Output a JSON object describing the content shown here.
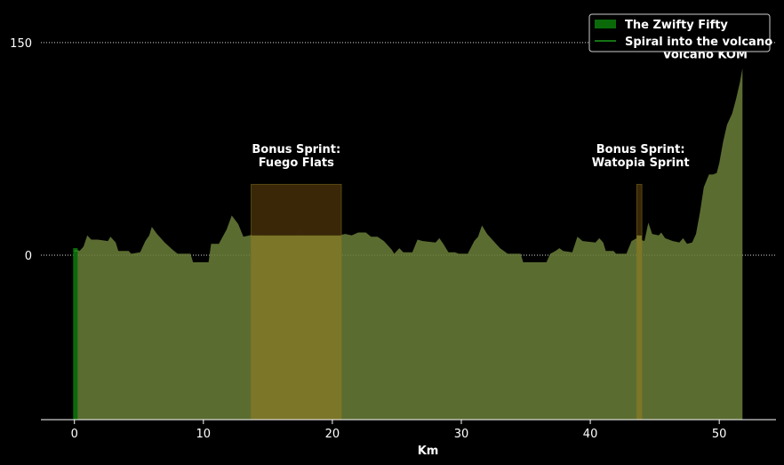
{
  "chart_data": {
    "type": "area",
    "title": "",
    "xlabel": "Km",
    "ylabel": "",
    "xlim": [
      -2.6,
      54.4
    ],
    "ylim": [
      -116,
      175
    ],
    "xticks": [
      0,
      10,
      20,
      30,
      40,
      50
    ],
    "yticks": [
      0,
      150
    ],
    "grid": "dotted horizontal lines at y ticks",
    "legend_position": "top-right",
    "series": [
      {
        "name": "The Zwifty Fifty",
        "kind": "area",
        "color": "#6b7f3a",
        "points": [
          [
            0,
            5
          ],
          [
            0.4,
            3
          ],
          [
            0.7,
            6
          ],
          [
            1.0,
            14
          ],
          [
            1.3,
            11
          ],
          [
            1.8,
            11
          ],
          [
            2.6,
            10
          ],
          [
            2.8,
            13
          ],
          [
            3.2,
            9
          ],
          [
            3.4,
            3
          ],
          [
            4.2,
            3
          ],
          [
            4.4,
            1
          ],
          [
            5.1,
            2
          ],
          [
            5.5,
            10
          ],
          [
            5.8,
            14
          ],
          [
            6.0,
            20
          ],
          [
            6.4,
            15
          ],
          [
            7.0,
            9
          ],
          [
            7.6,
            4
          ],
          [
            8.0,
            1
          ],
          [
            9.0,
            1
          ],
          [
            9.2,
            -5
          ],
          [
            10.4,
            -5
          ],
          [
            10.6,
            8
          ],
          [
            11.2,
            8
          ],
          [
            11.8,
            18
          ],
          [
            12.2,
            28
          ],
          [
            12.7,
            22
          ],
          [
            13.1,
            13
          ],
          [
            13.6,
            14
          ],
          [
            14.0,
            16
          ],
          [
            14.3,
            14
          ],
          [
            15.5,
            14
          ],
          [
            17.0,
            14
          ],
          [
            17.5,
            18
          ],
          [
            17.9,
            14
          ],
          [
            19.0,
            14
          ],
          [
            20.5,
            14
          ],
          [
            21.0,
            15
          ],
          [
            21.5,
            14
          ],
          [
            22.0,
            16
          ],
          [
            22.6,
            16
          ],
          [
            23.0,
            13
          ],
          [
            23.5,
            13
          ],
          [
            24.0,
            10
          ],
          [
            24.6,
            4
          ],
          [
            24.8,
            1
          ],
          [
            25.2,
            5
          ],
          [
            25.5,
            2
          ],
          [
            26.2,
            2
          ],
          [
            26.6,
            11
          ],
          [
            27.0,
            10
          ],
          [
            28.0,
            9
          ],
          [
            28.3,
            12
          ],
          [
            28.6,
            8
          ],
          [
            29.0,
            2
          ],
          [
            29.5,
            2
          ],
          [
            29.8,
            1
          ],
          [
            30.5,
            1
          ],
          [
            31.0,
            10
          ],
          [
            31.3,
            13
          ],
          [
            31.6,
            21
          ],
          [
            32.0,
            15
          ],
          [
            33.0,
            5
          ],
          [
            33.6,
            1
          ],
          [
            34.6,
            1
          ],
          [
            34.8,
            -5
          ],
          [
            36.6,
            -5
          ],
          [
            36.9,
            1
          ],
          [
            37.3,
            3
          ],
          [
            37.6,
            5
          ],
          [
            37.9,
            3
          ],
          [
            38.6,
            2
          ],
          [
            39.0,
            13
          ],
          [
            39.4,
            10
          ],
          [
            40.4,
            9
          ],
          [
            40.7,
            12
          ],
          [
            41.0,
            9
          ],
          [
            41.2,
            3
          ],
          [
            41.8,
            3
          ],
          [
            42.0,
            1
          ],
          [
            42.8,
            1
          ],
          [
            43.2,
            10
          ],
          [
            43.6,
            12
          ],
          [
            44.2,
            10
          ],
          [
            44.5,
            23
          ],
          [
            44.8,
            15
          ],
          [
            45.3,
            14
          ],
          [
            45.5,
            16
          ],
          [
            45.8,
            12
          ],
          [
            46.4,
            10
          ],
          [
            46.9,
            9
          ],
          [
            47.2,
            12
          ],
          [
            47.5,
            8
          ],
          [
            47.9,
            9
          ],
          [
            48.2,
            15
          ],
          [
            48.5,
            30
          ],
          [
            48.8,
            48
          ],
          [
            49.2,
            57
          ],
          [
            49.5,
            57
          ],
          [
            49.8,
            58
          ],
          [
            50.0,
            65
          ],
          [
            50.3,
            80
          ],
          [
            50.6,
            92
          ],
          [
            51.0,
            100
          ],
          [
            51.3,
            110
          ],
          [
            51.6,
            122
          ],
          [
            51.8,
            132
          ]
        ]
      },
      {
        "name": "Spiral into the volcano",
        "kind": "line",
        "color": "#1a9a1a",
        "points": [
          [
            0,
            3
          ],
          [
            0.2,
            3
          ]
        ]
      }
    ],
    "highlight_regions": [
      {
        "x0": 13.7,
        "x1": 20.7,
        "y_top": 50,
        "label": "Bonus Sprint:\nFuego Flats",
        "label_x": 17.2,
        "label_y": 62,
        "bar_color": "#7e7a2a",
        "top_color": "#3a2808"
      },
      {
        "x0": 43.6,
        "x1": 44.0,
        "y_top": 50,
        "label": "Bonus Sprint:\nWatopia Sprint",
        "label_x": 43.9,
        "label_y": 62,
        "bar_color": "#7e7a2a",
        "top_color": "#3a2808"
      }
    ],
    "annotations": [
      {
        "text": "Volcano KOM",
        "x": 48.9,
        "y": 139
      }
    ],
    "green_marker": {
      "x0": -0.1,
      "x1": 0.25,
      "color": "#0a6a0a"
    }
  }
}
